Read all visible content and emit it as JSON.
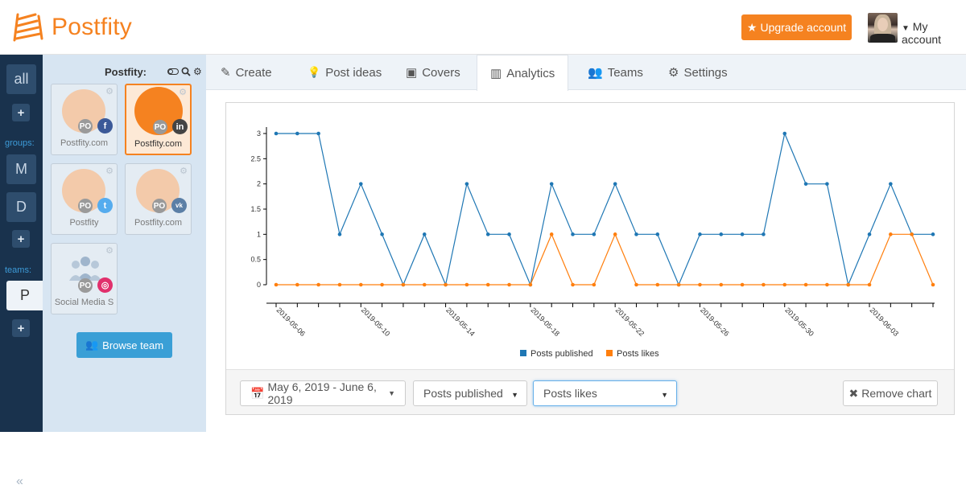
{
  "header": {
    "brand": "Postfity",
    "upgrade_label": "Upgrade account",
    "account_label": "My account"
  },
  "strip": {
    "all_label": "all",
    "groups_label": "groups:",
    "group_items": [
      "M",
      "D"
    ],
    "teams_label": "teams:",
    "team_items": [
      "P"
    ],
    "plus": "+",
    "collapse": "«"
  },
  "panel": {
    "title": "Postfity:",
    "profiles": [
      {
        "name": "Postfity.com",
        "network": "facebook",
        "po": "PO",
        "color": "#3b5998",
        "glyph": "f",
        "active": false
      },
      {
        "name": "Postfity.com",
        "network": "linkedin",
        "po": "PO",
        "color": "#444444",
        "glyph": "in",
        "active": true
      },
      {
        "name": "Postfity",
        "network": "twitter",
        "po": "PO",
        "color": "#55acee",
        "glyph": "t",
        "active": false
      },
      {
        "name": "Postfity.com",
        "network": "vk",
        "po": "PO",
        "color": "#5b7fa6",
        "glyph": "vk",
        "active": false
      },
      {
        "name": "Social Media S",
        "network": "instagram",
        "po": "PO",
        "color": "#e1306c",
        "glyph": "◎",
        "active": false
      }
    ],
    "browse_label": "Browse team"
  },
  "tabs": [
    {
      "label": "Create",
      "icon": "edit-icon"
    },
    {
      "label": "Post ideas",
      "icon": "lightbulb-icon"
    },
    {
      "label": "Covers",
      "icon": "image-icon"
    },
    {
      "label": "Analytics",
      "icon": "bar-chart-icon",
      "active": true
    },
    {
      "label": "Teams",
      "icon": "users-icon"
    },
    {
      "label": "Settings",
      "icon": "gears-icon"
    }
  ],
  "chart_data": {
    "type": "line",
    "x": [
      "2019-05-06",
      "2019-05-07",
      "2019-05-08",
      "2019-05-09",
      "2019-05-10",
      "2019-05-11",
      "2019-05-12",
      "2019-05-13",
      "2019-05-14",
      "2019-05-15",
      "2019-05-16",
      "2019-05-17",
      "2019-05-18",
      "2019-05-19",
      "2019-05-20",
      "2019-05-21",
      "2019-05-22",
      "2019-05-23",
      "2019-05-24",
      "2019-05-25",
      "2019-05-26",
      "2019-05-27",
      "2019-05-28",
      "2019-05-29",
      "2019-05-30",
      "2019-05-31",
      "2019-06-01",
      "2019-06-02",
      "2019-06-03",
      "2019-06-04",
      "2019-06-05",
      "2019-06-06"
    ],
    "x_tick_labels": [
      "2019-05-06",
      "2019-05-10",
      "2019-05-14",
      "2019-05-18",
      "2019-05-22",
      "2019-05-26",
      "2019-05-30",
      "2019-06-03"
    ],
    "series": [
      {
        "name": "Posts published",
        "color": "#1f77b4",
        "values": [
          3,
          3,
          3,
          1,
          2,
          1,
          0,
          1,
          0,
          2,
          1,
          1,
          0,
          2,
          1,
          1,
          2,
          1,
          1,
          0,
          1,
          1,
          1,
          1,
          3,
          2,
          2,
          0,
          1,
          2,
          1,
          1
        ]
      },
      {
        "name": "Posts likes",
        "color": "#ff7f0e",
        "values": [
          0,
          0,
          0,
          0,
          0,
          0,
          0,
          0,
          0,
          0,
          0,
          0,
          0,
          1,
          0,
          0,
          1,
          0,
          0,
          0,
          0,
          0,
          0,
          0,
          0,
          0,
          0,
          0,
          0,
          1,
          1,
          0
        ]
      }
    ],
    "yticks": [
      "0",
      "0.5",
      "1",
      "1.5",
      "2",
      "2.5",
      "3"
    ],
    "ylim": [
      0,
      3.2
    ],
    "legend_position": "bottom-center"
  },
  "controls": {
    "date_range": "May 6, 2019 - June 6, 2019",
    "metric1": "Posts published",
    "metric2": "Posts likes",
    "remove_label": "Remove chart"
  }
}
